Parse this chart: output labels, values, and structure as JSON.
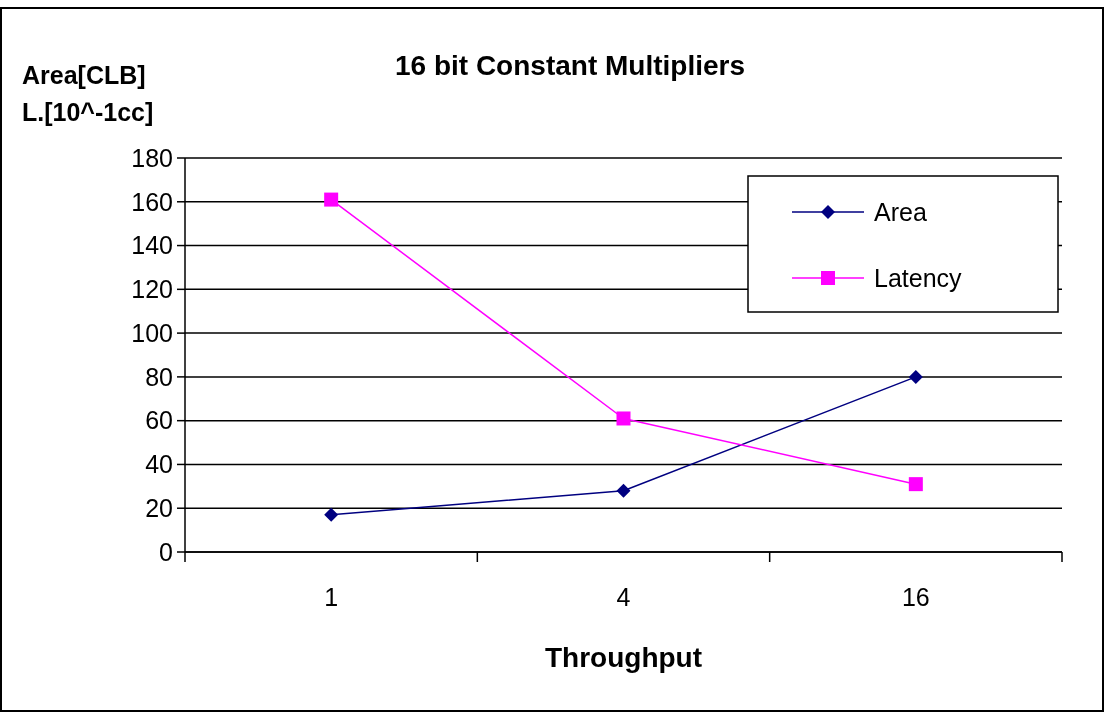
{
  "chart_data": {
    "type": "line",
    "title": "16 bit Constant Multipliers",
    "xlabel": "Throughput",
    "ylabel": "Area[CLB]\nL.[10^-1cc]",
    "categories": [
      "1",
      "4",
      "16"
    ],
    "series": [
      {
        "name": "Area",
        "color": "#000080",
        "values": [
          17,
          28,
          80
        ],
        "marker": "diamond"
      },
      {
        "name": "Latency",
        "color": "#ff00ff",
        "values": [
          161,
          61,
          31
        ],
        "marker": "square"
      }
    ],
    "ylim": [
      0,
      180
    ],
    "yticks": [
      0,
      20,
      40,
      60,
      80,
      100,
      120,
      140,
      160,
      180
    ],
    "grid": "y",
    "legend": "top right"
  }
}
